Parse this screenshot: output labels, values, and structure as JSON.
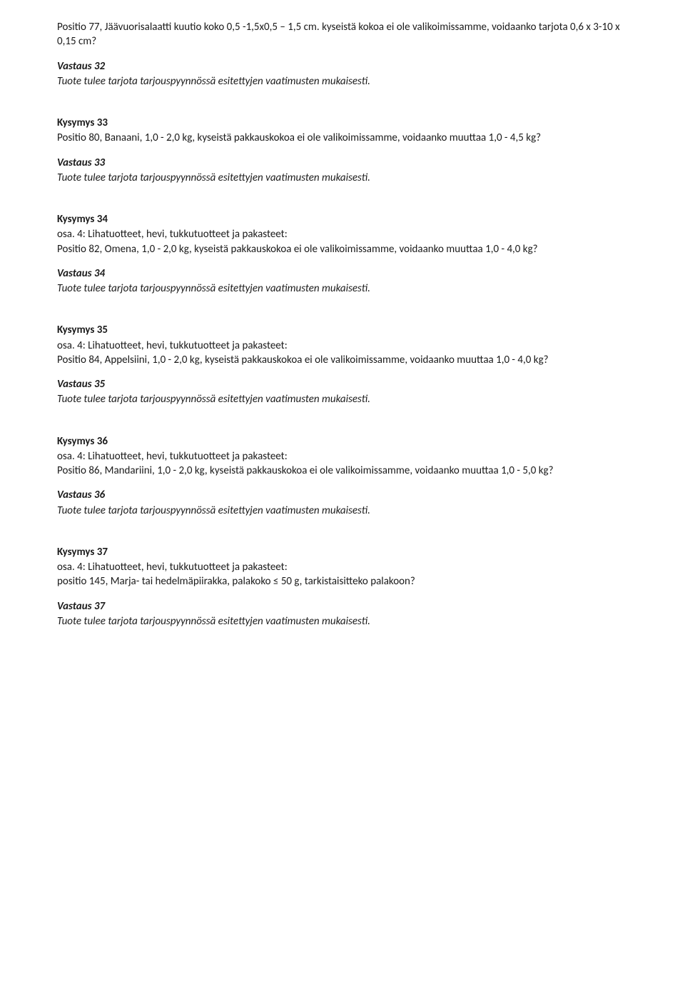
{
  "intro": {
    "text": "Positio 77, Jäävuorisalaatti kuutio koko 0,5 -1,5x0,5 – 1,5 cm. kyseistä kokoa ei ole valikoimissamme, voidaanko tarjota 0,6 x 3-10 x 0,15 cm?"
  },
  "qa": [
    {
      "a_label": "Vastaus 32",
      "a_text": "Tuote tulee tarjota tarjouspyynnössä esitettyjen vaatimusten mukaisesti."
    },
    {
      "q_label": "Kysymys 33",
      "q_text": "Positio 80, Banaani, 1,0 - 2,0 kg, kyseistä pakkauskokoa ei ole valikoimissamme, voidaanko muuttaa 1,0 - 4,5 kg?",
      "a_label": "Vastaus 33",
      "a_text": "Tuote tulee tarjota tarjouspyynnössä esitettyjen vaatimusten mukaisesti."
    },
    {
      "q_label": "Kysymys 34",
      "q_sub": "osa. 4: Lihatuotteet, hevi, tukkutuotteet ja pakasteet:",
      "q_text": "Positio 82, Omena, 1,0 - 2,0 kg, kyseistä pakkauskokoa ei ole valikoimissamme, voidaanko muuttaa 1,0 - 4,0 kg?",
      "a_label": "Vastaus 34",
      "a_text": "Tuote tulee tarjota tarjouspyynnössä esitettyjen vaatimusten mukaisesti."
    },
    {
      "q_label": "Kysymys 35",
      "q_sub": "osa. 4: Lihatuotteet, hevi, tukkutuotteet ja pakasteet:",
      "q_text": "Positio 84, Appelsiini, 1,0 - 2,0 kg, kyseistä pakkauskokoa ei ole valikoimissamme, voidaanko muuttaa 1,0 - 4,0 kg?",
      "a_label": "Vastaus 35",
      "a_text": "Tuote tulee tarjota tarjouspyynnössä esitettyjen vaatimusten mukaisesti."
    },
    {
      "q_label": "Kysymys 36",
      "q_sub": "osa. 4: Lihatuotteet, hevi, tukkutuotteet ja pakasteet:",
      "q_text": "Positio 86, Mandariini, 1,0 - 2,0 kg, kyseistä pakkauskokoa ei ole valikoimissamme, voidaanko muuttaa 1,0 - 5,0 kg?",
      "a_label": "Vastaus 36",
      "a_text": "Tuote tulee tarjota tarjouspyynnössä esitettyjen vaatimusten mukaisesti."
    },
    {
      "q_label": "Kysymys 37",
      "q_sub": "osa. 4: Lihatuotteet, hevi, tukkutuotteet ja pakasteet:",
      "q_text": "positio 145, Marja- tai hedelmäpiirakka, palakoko  ≤ 50 g, tarkistaisitteko palakoon?",
      "a_label": "Vastaus 37",
      "a_text": "Tuote tulee tarjota tarjouspyynnössä esitettyjen vaatimusten mukaisesti."
    }
  ]
}
